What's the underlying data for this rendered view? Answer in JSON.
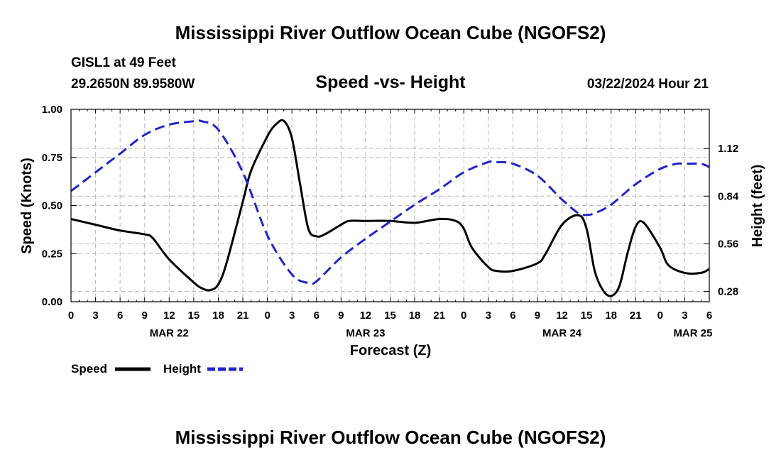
{
  "chart_data": {
    "type": "line",
    "title": "Mississippi River Outflow Ocean Cube (NGOFS2)",
    "footer_title": "Mississippi River Outflow Ocean Cube (NGOFS2)",
    "station": "GISL1 at 49 Feet",
    "coordinates": "29.2650N  89.9580W",
    "subtitle": "Speed -vs- Height",
    "datetime": "03/22/2024 Hour 21",
    "xlabel": "Forecast (Z)",
    "ylabel_left": "Speed (Knots)",
    "ylabel_right": "Height (feet)",
    "x_unit": "hours since 03/22 00Z",
    "xlim": [
      0,
      78
    ],
    "ylim_left": [
      0,
      1
    ],
    "ylim_right": [
      0.22,
      1.35
    ],
    "grid": true,
    "x_ticks": [
      {
        "x": 0,
        "label": "0"
      },
      {
        "x": 3,
        "label": "3"
      },
      {
        "x": 6,
        "label": "6"
      },
      {
        "x": 9,
        "label": "9"
      },
      {
        "x": 12,
        "label": "12"
      },
      {
        "x": 15,
        "label": "15"
      },
      {
        "x": 18,
        "label": "18"
      },
      {
        "x": 21,
        "label": "21"
      },
      {
        "x": 24,
        "label": "0"
      },
      {
        "x": 27,
        "label": "3"
      },
      {
        "x": 30,
        "label": "6"
      },
      {
        "x": 33,
        "label": "9"
      },
      {
        "x": 36,
        "label": "12"
      },
      {
        "x": 39,
        "label": "15"
      },
      {
        "x": 42,
        "label": "18"
      },
      {
        "x": 45,
        "label": "21"
      },
      {
        "x": 48,
        "label": "0"
      },
      {
        "x": 51,
        "label": "3"
      },
      {
        "x": 54,
        "label": "6"
      },
      {
        "x": 57,
        "label": "9"
      },
      {
        "x": 60,
        "label": "12"
      },
      {
        "x": 63,
        "label": "15"
      },
      {
        "x": 66,
        "label": "18"
      },
      {
        "x": 69,
        "label": "21"
      },
      {
        "x": 72,
        "label": "0"
      },
      {
        "x": 75,
        "label": "3"
      },
      {
        "x": 78,
        "label": "6"
      }
    ],
    "date_labels": [
      {
        "x": 12,
        "label": "MAR 22"
      },
      {
        "x": 36,
        "label": "MAR 23"
      },
      {
        "x": 60,
        "label": "MAR 24"
      },
      {
        "x": 76,
        "label": "MAR 25"
      }
    ],
    "y_ticks_left": [
      {
        "value": 0,
        "label": "0.00"
      },
      {
        "value": 0.25,
        "label": "0.25"
      },
      {
        "value": 0.5,
        "label": "0.50"
      },
      {
        "value": 0.75,
        "label": "0.75"
      },
      {
        "value": 1.0,
        "label": "1.00"
      }
    ],
    "y_ticks_right": [
      {
        "value": 0.28,
        "label": "0.28"
      },
      {
        "value": 0.56,
        "label": "0.56"
      },
      {
        "value": 0.84,
        "label": "0.84"
      },
      {
        "value": 1.12,
        "label": "1.12"
      }
    ],
    "series": [
      {
        "name": "Speed",
        "axis": "left",
        "color": "#000000",
        "dash": "solid",
        "x": [
          0,
          3,
          6,
          9,
          10,
          12,
          15,
          16,
          17,
          18,
          19,
          21,
          22,
          24,
          25,
          26,
          27,
          28,
          29,
          30,
          31,
          33,
          34,
          36,
          39,
          42,
          45,
          47,
          48,
          49,
          51,
          52,
          54,
          57,
          58,
          60,
          62,
          63,
          64,
          65,
          66,
          67,
          68,
          69,
          70,
          72,
          73,
          75,
          77,
          78
        ],
        "values": [
          0.43,
          0.4,
          0.37,
          0.35,
          0.33,
          0.22,
          0.1,
          0.07,
          0.06,
          0.09,
          0.2,
          0.52,
          0.68,
          0.86,
          0.92,
          0.94,
          0.85,
          0.61,
          0.38,
          0.34,
          0.35,
          0.4,
          0.42,
          0.42,
          0.42,
          0.41,
          0.43,
          0.42,
          0.38,
          0.28,
          0.18,
          0.16,
          0.16,
          0.2,
          0.25,
          0.4,
          0.45,
          0.38,
          0.16,
          0.06,
          0.03,
          0.08,
          0.25,
          0.39,
          0.41,
          0.28,
          0.19,
          0.15,
          0.15,
          0.17
        ]
      },
      {
        "name": "Height",
        "axis": "right",
        "color": "#1f26c9",
        "dash": "dashed",
        "x": [
          0,
          3,
          6,
          9,
          12,
          15,
          16,
          18,
          21,
          24,
          27,
          29,
          30,
          33,
          36,
          39,
          42,
          45,
          48,
          51,
          52,
          54,
          57,
          60,
          62,
          63,
          64,
          66,
          69,
          72,
          74,
          75,
          77,
          78
        ],
        "values": [
          0.87,
          0.98,
          1.09,
          1.2,
          1.26,
          1.28,
          1.28,
          1.23,
          0.98,
          0.61,
          0.38,
          0.33,
          0.34,
          0.48,
          0.59,
          0.69,
          0.79,
          0.88,
          0.98,
          1.04,
          1.04,
          1.03,
          0.96,
          0.82,
          0.74,
          0.73,
          0.74,
          0.79,
          0.91,
          1.0,
          1.03,
          1.03,
          1.03,
          1.01
        ]
      }
    ],
    "legend": [
      {
        "label": "Speed",
        "color": "#000000",
        "dash": "solid"
      },
      {
        "label": "Height",
        "color": "#1f26c9",
        "dash": "dashed"
      }
    ]
  }
}
